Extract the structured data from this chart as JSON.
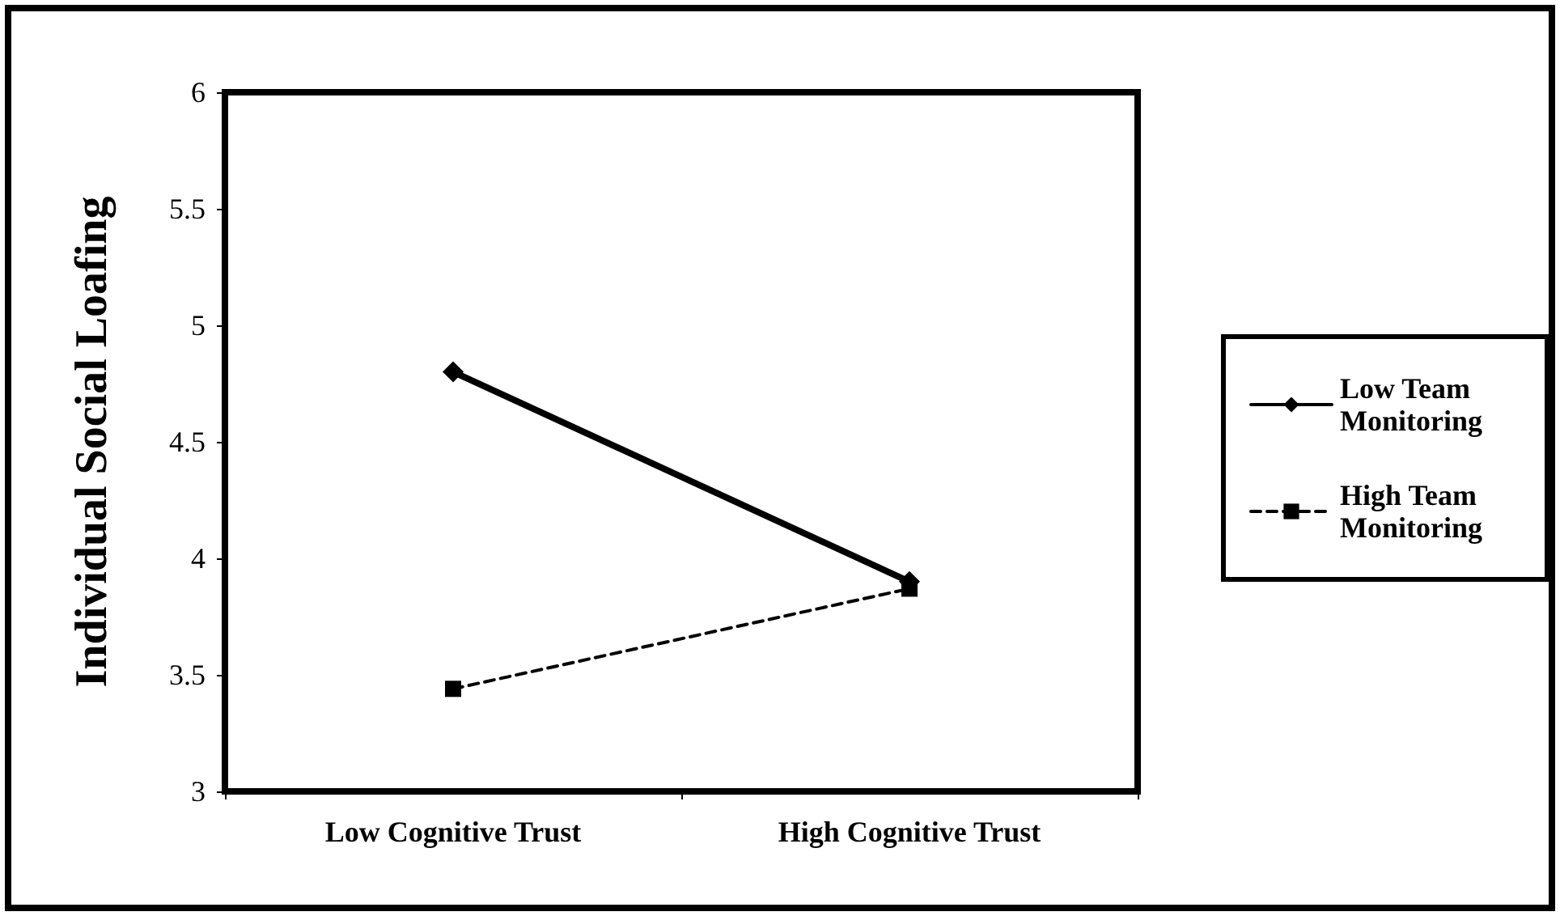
{
  "chart_data": {
    "type": "line",
    "ylabel": "Individual Social Loafing",
    "categories": [
      "Low Cognitive Trust",
      "High Cognitive Trust"
    ],
    "series": [
      {
        "name": "Low Team Monitoring",
        "color": "#000000",
        "values": [
          4.8,
          3.9
        ],
        "marker": "diamond",
        "line_style": "solid"
      },
      {
        "name": "High Team Monitoring",
        "color": "#000000",
        "values": [
          3.44,
          3.87
        ],
        "marker": "square",
        "line_style": "dashed"
      }
    ],
    "ylim": [
      3,
      6
    ],
    "yticks": [
      3,
      3.5,
      4,
      4.5,
      5,
      5.5,
      6
    ],
    "grid": false,
    "legend": "right"
  }
}
